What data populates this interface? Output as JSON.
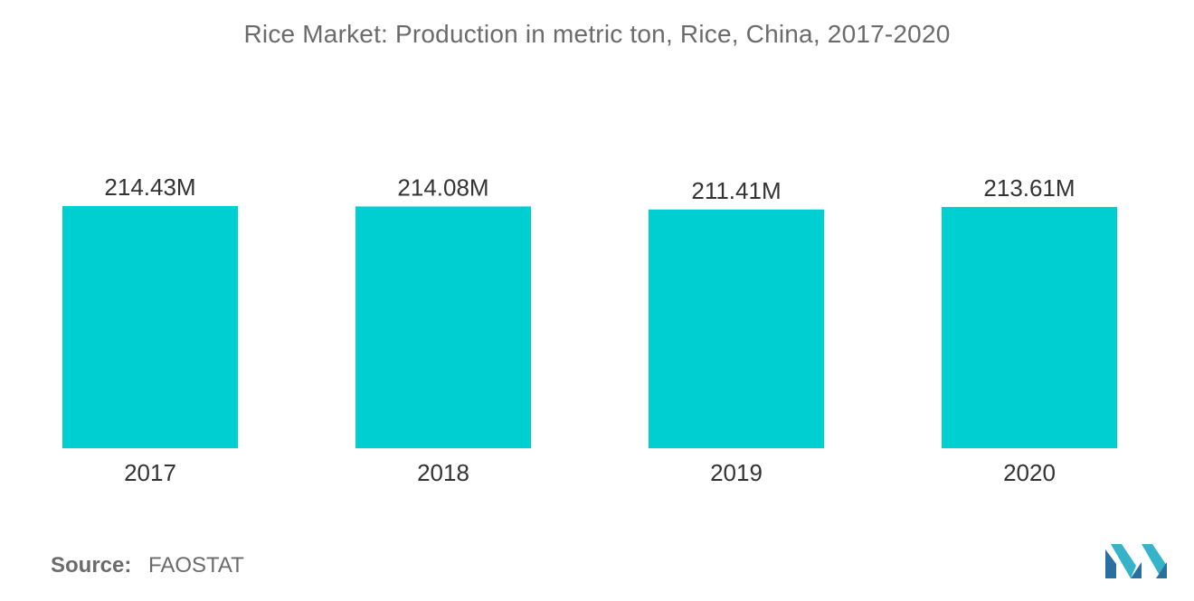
{
  "title": "Rice Market: Production in metric ton, Rice, China, 2017-2020",
  "source": {
    "label": "Source:",
    "value": "FAOSTAT"
  },
  "logo": {
    "icon": "mordor-intelligence-logo-icon",
    "colors": [
      "#2a6f9e",
      "#34b3c9"
    ]
  },
  "colors": {
    "bar": "#00cfd2",
    "text": "#333333",
    "title": "#6b6b6b"
  },
  "chart_data": {
    "type": "bar",
    "title": "Rice Market: Production in metric ton, Rice, China, 2017-2020",
    "xlabel": "",
    "ylabel": "",
    "categories": [
      "2017",
      "2018",
      "2019",
      "2020"
    ],
    "values": [
      214.43,
      214.08,
      211.41,
      213.61
    ],
    "value_labels": [
      "214.43M",
      "214.08M",
      "211.41M",
      "213.61M"
    ],
    "unit": "M",
    "ylim": [
      0,
      214.43
    ],
    "grid": false,
    "legend": "none"
  }
}
